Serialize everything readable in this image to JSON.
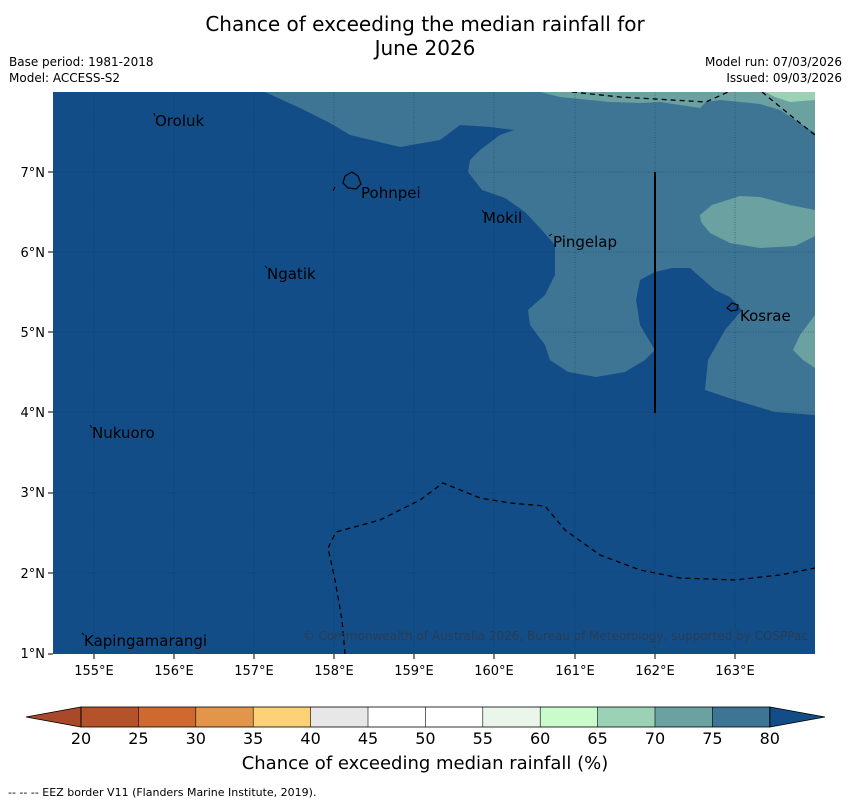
{
  "title": {
    "line1": "Chance of exceeding the median rainfall for",
    "line2": "June 2026"
  },
  "meta": {
    "base_period": "Base period: 1981-2018",
    "model": "Model: ACCESS-S2",
    "model_run": "Model run: 07/03/2026",
    "issued": "Issued: 09/03/2026"
  },
  "map": {
    "lon_range": [
      154.5,
      164.0
    ],
    "lat_range": [
      1.0,
      8.0
    ],
    "lon_ticks": [
      "155°E",
      "156°E",
      "157°E",
      "158°E",
      "159°E",
      "160°E",
      "161°E",
      "162°E",
      "163°E"
    ],
    "lat_ticks": [
      "1°N",
      "2°N",
      "3°N",
      "4°N",
      "5°N",
      "6°N",
      "7°N"
    ],
    "places": [
      {
        "name": "Oroluk",
        "lon": 155.7,
        "lat": 7.7
      },
      {
        "name": "Pohnpei",
        "lon": 158.2,
        "lat": 6.9
      },
      {
        "name": "Mokil",
        "lon": 159.8,
        "lat": 6.5
      },
      {
        "name": "Pingelap",
        "lon": 160.7,
        "lat": 6.2
      },
      {
        "name": "Ngatik",
        "lon": 157.1,
        "lat": 5.8
      },
      {
        "name": "Kosrae",
        "lon": 162.98,
        "lat": 5.33
      },
      {
        "name": "Nukuoro",
        "lon": 154.95,
        "lat": 3.85
      },
      {
        "name": "Kapingamarangi",
        "lon": 154.8,
        "lat": 1.25
      }
    ],
    "copyright": "© Commonwealth of Australia 2026, Bureau of Meteorology, supported by COSPPac"
  },
  "colorbar": {
    "ticks": [
      "20",
      "25",
      "30",
      "35",
      "40",
      "45",
      "50",
      "55",
      "60",
      "65",
      "70",
      "75",
      "80"
    ],
    "colors": [
      "#a8492a",
      "#b6522a",
      "#d0692f",
      "#e3964a",
      "#fdd175",
      "#e7e7e7",
      "#ffffff",
      "#ffffff",
      "#e9f6e9",
      "#c9fbcb",
      "#9bd2b6",
      "#6ba1a1",
      "#3e7595",
      "#134d87"
    ],
    "label": "Chance of exceeding median rainfall (%)"
  },
  "footnote": "--  --  -- EEZ border V11 (Flanders Marine Institute, 2019)."
}
